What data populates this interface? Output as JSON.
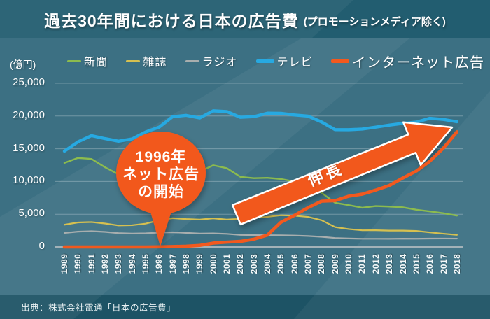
{
  "header": {
    "title": "過去30年間における日本の広告費",
    "subtitle": "(プロモーションメディア除く)"
  },
  "footer": {
    "source": "出典：株式会社電通「日本の広告費」"
  },
  "theme": {
    "header_bg": "#225d70",
    "chart_bg": "#3c7083",
    "footer_bg": "#1d5365",
    "accent_orange": "#f2591e",
    "grid_line_color": "rgba(255,255,255,0.28)",
    "axis_line_color": "#a3b2b8",
    "text_color": "#ffffff"
  },
  "chart": {
    "unit_label": "(億円)",
    "arrow_label": "伸長",
    "callout": {
      "line1": "1996年",
      "line2": "ネット広告",
      "line3": "の開始"
    }
  },
  "chart_data": {
    "type": "line",
    "title": "過去30年間における日本の広告費(プロモーションメディア除く)",
    "unit": "億円",
    "xlabel": "",
    "ylabel": "(億円)",
    "ylim": [
      0,
      25000
    ],
    "grid": "horizontal",
    "legend_position": "top",
    "x": [
      1989,
      1990,
      1991,
      1992,
      1993,
      1994,
      1995,
      1996,
      1997,
      1998,
      1999,
      2000,
      2001,
      2002,
      2003,
      2004,
      2005,
      2006,
      2007,
      2008,
      2009,
      2010,
      2011,
      2012,
      2013,
      2014,
      2015,
      2016,
      2017,
      2018
    ],
    "x_labels": [
      "1989",
      "1990",
      "1991",
      "1992",
      "1993",
      "1994",
      "1995",
      "1996",
      "1997",
      "1998",
      "1999",
      "2000",
      "2001",
      "2002",
      "2003",
      "2004",
      "2005",
      "2006",
      "2007",
      "2008",
      "2009",
      "2010",
      "2011",
      "2012",
      "2013",
      "2014",
      "2015",
      "2016",
      "2017",
      "2018"
    ],
    "yticks": [
      {
        "value": 0,
        "label": "0"
      },
      {
        "value": 5000,
        "label": "5,000"
      },
      {
        "value": 10000,
        "label": "10,000"
      },
      {
        "value": 15000,
        "label": "15,000"
      },
      {
        "value": 20000,
        "label": "20,000"
      },
      {
        "value": 25000,
        "label": "25,000"
      }
    ],
    "series": [
      {
        "key": "newspaper",
        "name": "新聞",
        "color": "#8cbb4e",
        "emphasis": false,
        "values": [
          12829,
          13592,
          13445,
          12172,
          11087,
          11211,
          11657,
          12379,
          12636,
          11787,
          11535,
          12474,
          12027,
          10707,
          10500,
          10559,
          10377,
          9986,
          9462,
          8276,
          6739,
          6396,
          5990,
          6242,
          6170,
          6057,
          5679,
          5431,
          5147,
          4784
        ]
      },
      {
        "key": "magazine",
        "name": "雑誌",
        "color": "#d6c050",
        "emphasis": false,
        "values": [
          3394,
          3741,
          3799,
          3581,
          3277,
          3318,
          3559,
          4073,
          4395,
          4258,
          4183,
          4369,
          4180,
          4300,
          4450,
          4600,
          4842,
          4777,
          4585,
          4078,
          3034,
          2733,
          2542,
          2551,
          2499,
          2500,
          2443,
          2223,
          2023,
          1841
        ]
      },
      {
        "key": "radio",
        "name": "ラジオ",
        "color": "#a8aeae",
        "emphasis": false,
        "values": [
          2128,
          2335,
          2406,
          2299,
          2113,
          2040,
          2082,
          2181,
          2247,
          2153,
          2043,
          2071,
          1998,
          1837,
          1807,
          1795,
          1778,
          1744,
          1671,
          1549,
          1370,
          1299,
          1247,
          1246,
          1243,
          1272,
          1254,
          1285,
          1290,
          1278
        ]
      },
      {
        "key": "tv",
        "name": "テレビ",
        "color": "#27a9e1",
        "emphasis": true,
        "values": [
          14631,
          16046,
          17000,
          16550,
          16150,
          16500,
          17553,
          18300,
          19900,
          20100,
          19700,
          20793,
          20681,
          19800,
          19900,
          20436,
          20411,
          20161,
          19981,
          19092,
          17915,
          17908,
          18005,
          18307,
          18612,
          18874,
          19075,
          19657,
          19478,
          19123
        ]
      },
      {
        "key": "internet",
        "name": "インターネット広告",
        "color": "#f2591e",
        "emphasis": true,
        "values": [
          0,
          0,
          0,
          0,
          0,
          0,
          0,
          16,
          60,
          114,
          241,
          590,
          735,
          845,
          1183,
          1814,
          3777,
          4826,
          6003,
          6983,
          7069,
          7747,
          8062,
          8680,
          9381,
          10519,
          11594,
          13100,
          15094,
          17589
        ]
      }
    ],
    "annotations": {
      "callout_year": 1996,
      "callout_text": "1996年ネット広告の開始",
      "arrow_text": "伸長"
    }
  }
}
